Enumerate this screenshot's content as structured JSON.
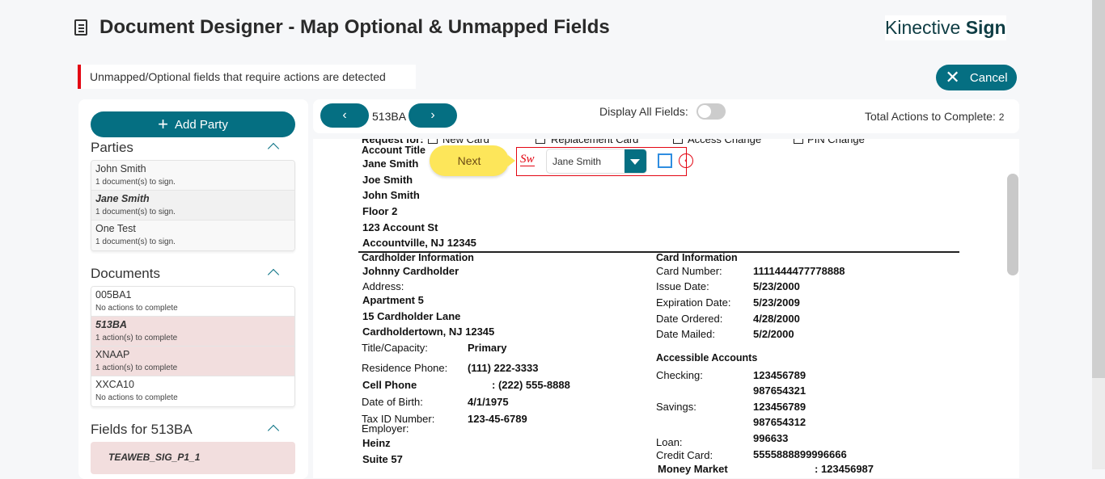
{
  "header": {
    "title": "Document Designer - Map Optional & Unmapped Fields",
    "icon": "document-icon",
    "logo": {
      "light": "Kinective",
      "bold": "Sign"
    },
    "cancel_label": "Cancel"
  },
  "alert": {
    "text": "Unmapped/Optional fields that require actions are detected",
    "color": "#e30613"
  },
  "accent": "#056f82",
  "sidebar": {
    "add_party_label": "Add Party",
    "parties_title": "Parties",
    "parties": [
      {
        "name": "John Smith",
        "status": "1 document(s) to sign."
      },
      {
        "name": "Jane Smith",
        "status": "1 document(s) to sign.",
        "selected": true
      },
      {
        "name": "One Test",
        "status": "1 document(s) to sign."
      }
    ],
    "documents_title": "Documents",
    "documents": [
      {
        "name": "005BA1",
        "status": "No actions to complete"
      },
      {
        "name": "513BA",
        "status": "1 action(s) to complete",
        "selected": true
      },
      {
        "name": "XNAAP",
        "status": "1 action(s) to complete"
      },
      {
        "name": "XXCA10",
        "status": "No actions to complete"
      }
    ],
    "fields_title": "Fields for 513BA",
    "fields": [
      "TEAWEB_SIG_P1_1"
    ]
  },
  "toolbar": {
    "doc_name": "513BA",
    "display_all_label": "Display All Fields:",
    "display_all_on": false,
    "total_label": "Total Actions to Complete:",
    "total_value": "2"
  },
  "overlay": {
    "next_label": "Next",
    "signer": "Jane Smith"
  },
  "document": {
    "request_for": "Request for:",
    "new_card": "New Card",
    "replacement_card": "Replacement Card",
    "access_change": "Access Change",
    "pin_change": "PIN Change",
    "account_title": "Account Title",
    "account_lines": [
      "Jane Smith",
      "Joe Smith",
      "John Smith",
      "Floor 2",
      "123 Account St",
      "Accountville, NJ 12345"
    ],
    "cardholder_info": "Cardholder Information",
    "cardholder_name": "Johnny Cardholder",
    "address_label": "Address:",
    "address_lines": [
      "Apartment 5",
      "15 Cardholder Lane",
      "Cardholdertown, NJ 12345"
    ],
    "title_capacity": [
      "Title/Capacity:",
      "Primary"
    ],
    "residence_phone": [
      "Residence Phone:",
      "(111) 222-3333"
    ],
    "cell_phone": [
      "Cell Phone",
      ":  (222) 555-8888"
    ],
    "dob": [
      "Date of Birth:",
      "4/1/1975"
    ],
    "tax_id": [
      "Tax ID Number:",
      "123-45-6789"
    ],
    "employer_label": "Employer:",
    "employer_lines": [
      "Heinz",
      "Suite 57"
    ],
    "card_info": "Card Information",
    "card_number": [
      "Card Number:",
      "1111444477778888"
    ],
    "issue_date": [
      "Issue Date:",
      "5/23/2000"
    ],
    "expiration_date": [
      "Expiration Date:",
      "5/23/2009"
    ],
    "date_ordered": [
      "Date Ordered:",
      "4/28/2000"
    ],
    "date_mailed": [
      "Date Mailed:",
      "5/2/2000"
    ],
    "accessible_accounts": "Accessible Accounts",
    "checking": [
      "Checking:",
      "123456789",
      "987654321"
    ],
    "savings": [
      "Savings:",
      "123456789",
      "987654312"
    ],
    "loan": [
      "Loan:",
      "996633"
    ],
    "credit_card": [
      "Credit Card:",
      "5555888899996666"
    ],
    "money_market": [
      "Money Market",
      ": 123456987"
    ]
  }
}
